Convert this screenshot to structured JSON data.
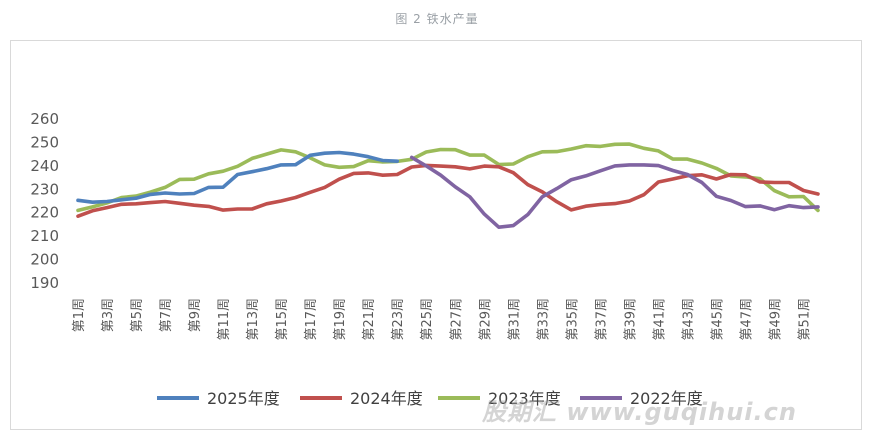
{
  "caption": "图 2 铁水产量",
  "watermark": "股期汇 www.guqihui.cn",
  "chart_data": {
    "type": "line",
    "title": "",
    "xlabel": "",
    "ylabel": "",
    "ylim": [
      190,
      260
    ],
    "yticks": [
      190,
      200,
      210,
      220,
      230,
      240,
      250,
      260
    ],
    "x": [
      "第1周",
      "第2周",
      "第3周",
      "第4周",
      "第5周",
      "第6周",
      "第7周",
      "第8周",
      "第9周",
      "第10周",
      "第11周",
      "第12周",
      "第13周",
      "第14周",
      "第15周",
      "第16周",
      "第17周",
      "第18周",
      "第19周",
      "第20周",
      "第21周",
      "第22周",
      "第23周",
      "第24周",
      "第25周",
      "第26周",
      "第27周",
      "第28周",
      "第29周",
      "第30周",
      "第31周",
      "第32周",
      "第33周",
      "第34周",
      "第35周",
      "第36周",
      "第37周",
      "第38周",
      "第39周",
      "第40周",
      "第41周",
      "第42周",
      "第43周",
      "第44周",
      "第45周",
      "第46周",
      "第47周",
      "第48周",
      "第49周",
      "第50周",
      "第51周",
      "第52周"
    ],
    "xtick_labels": [
      "第1周",
      "第3周",
      "第5周",
      "第7周",
      "第9周",
      "第11周",
      "第13周",
      "第15周",
      "第17周",
      "第19周",
      "第21周",
      "第23周",
      "第25周",
      "第27周",
      "第29周",
      "第31周",
      "第33周",
      "第35周",
      "第37周",
      "第39周",
      "第41周",
      "第43周",
      "第45周",
      "第47周",
      "第49周",
      "第51周"
    ],
    "legend_position": "bottom",
    "grid": false,
    "series": [
      {
        "name": "2025年度",
        "color": "#4f81bd",
        "values": [
          225.3,
          224.5,
          224.8,
          225.5,
          226.2,
          227.8,
          228.4,
          228,
          228.2,
          230.8,
          230.9,
          236.3,
          237.5,
          238.8,
          240.4,
          240.5,
          244.5,
          245.4,
          245.7,
          245,
          243.9,
          242.3,
          242,
          null,
          null,
          null,
          null,
          null,
          null,
          null,
          null,
          null,
          null,
          null,
          null,
          null,
          null,
          null,
          null,
          null,
          null,
          null,
          null,
          null,
          null,
          null,
          null,
          null,
          null,
          null,
          null,
          null
        ]
      },
      {
        "name": "2024年度",
        "color": "#c0504d",
        "values": [
          218.5,
          220.8,
          222.2,
          223.6,
          223.8,
          224.3,
          224.8,
          224,
          223.2,
          222.7,
          221.1,
          221.6,
          221.6,
          223.8,
          225,
          226.5,
          228.7,
          230.8,
          234.3,
          236.8,
          237,
          236,
          236.3,
          239.5,
          240.2,
          239.9,
          239.6,
          238.7,
          239.9,
          239.6,
          237.1,
          232,
          228.9,
          224.7,
          221.2,
          222.8,
          223.5,
          223.9,
          225,
          227.7,
          233.1,
          234.4,
          235.8,
          236.2,
          234.4,
          236.3,
          236.2,
          233.1,
          232.9,
          232.9,
          229.5,
          228
        ]
      },
      {
        "name": "2023年度",
        "color": "#9bbb59",
        "values": [
          221,
          222.5,
          224.2,
          226.5,
          227.1,
          228.8,
          230.8,
          234.2,
          234.3,
          236.6,
          237.7,
          239.8,
          243.2,
          245,
          246.8,
          246,
          243.4,
          240.4,
          239.4,
          239.7,
          242.2,
          241.7,
          241.9,
          242.8,
          245.9,
          247,
          246.9,
          244.6,
          244.6,
          240.6,
          240.8,
          243.9,
          246,
          246.1,
          247.2,
          248.6,
          248.3,
          249.2,
          249.3,
          247.5,
          246.4,
          242.9,
          242.9,
          241.2,
          238.9,
          235.7,
          235.3,
          234.5,
          229.4,
          226.8,
          226.9,
          221
        ]
      },
      {
        "name": "2022年度",
        "color": "#8064a2",
        "values": [
          null,
          null,
          null,
          null,
          null,
          null,
          null,
          null,
          null,
          null,
          null,
          null,
          null,
          null,
          null,
          null,
          null,
          null,
          null,
          null,
          null,
          null,
          null,
          243.6,
          240,
          236,
          231,
          226.8,
          219.4,
          213.8,
          214.5,
          219.2,
          226.8,
          230.3,
          234.1,
          235.7,
          237.9,
          240,
          240.4,
          240.4,
          240.1,
          238,
          236.3,
          232.9,
          227,
          225.2,
          222.6,
          222.9,
          221.3,
          223,
          222.2,
          222.5
        ]
      }
    ]
  }
}
